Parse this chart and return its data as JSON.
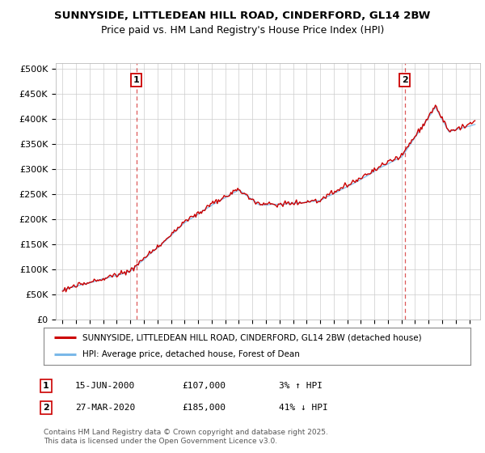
{
  "title1": "SUNNYSIDE, LITTLEDEAN HILL ROAD, CINDERFORD, GL14 2BW",
  "title2": "Price paid vs. HM Land Registry's House Price Index (HPI)",
  "ylabel_ticks": [
    "£0",
    "£50K",
    "£100K",
    "£150K",
    "£200K",
    "£250K",
    "£300K",
    "£350K",
    "£400K",
    "£450K",
    "£500K"
  ],
  "ytick_vals": [
    0,
    50000,
    100000,
    150000,
    200000,
    250000,
    300000,
    350000,
    400000,
    450000,
    500000
  ],
  "legend_line1": "SUNNYSIDE, LITTLEDEAN HILL ROAD, CINDERFORD, GL14 2BW (detached house)",
  "legend_line2": "HPI: Average price, detached house, Forest of Dean",
  "marker1_date": "15-JUN-2000",
  "marker1_price": "£107,000",
  "marker1_pct": "3% ↑ HPI",
  "marker1_x": 2000.45,
  "marker2_date": "27-MAR-2020",
  "marker2_price": "£185,000",
  "marker2_pct": "41% ↓ HPI",
  "marker2_x": 2020.23,
  "footnote": "Contains HM Land Registry data © Crown copyright and database right 2025.\nThis data is licensed under the Open Government Licence v3.0.",
  "hpi_color": "#7ab8e8",
  "price_color": "#cc0000",
  "vline_color": "#cc0000",
  "bg_color": "#ffffff",
  "grid_color": "#cccccc",
  "xlim_min": 1994.5,
  "xlim_max": 2025.8,
  "ylim_min": 0,
  "ylim_max": 510000
}
